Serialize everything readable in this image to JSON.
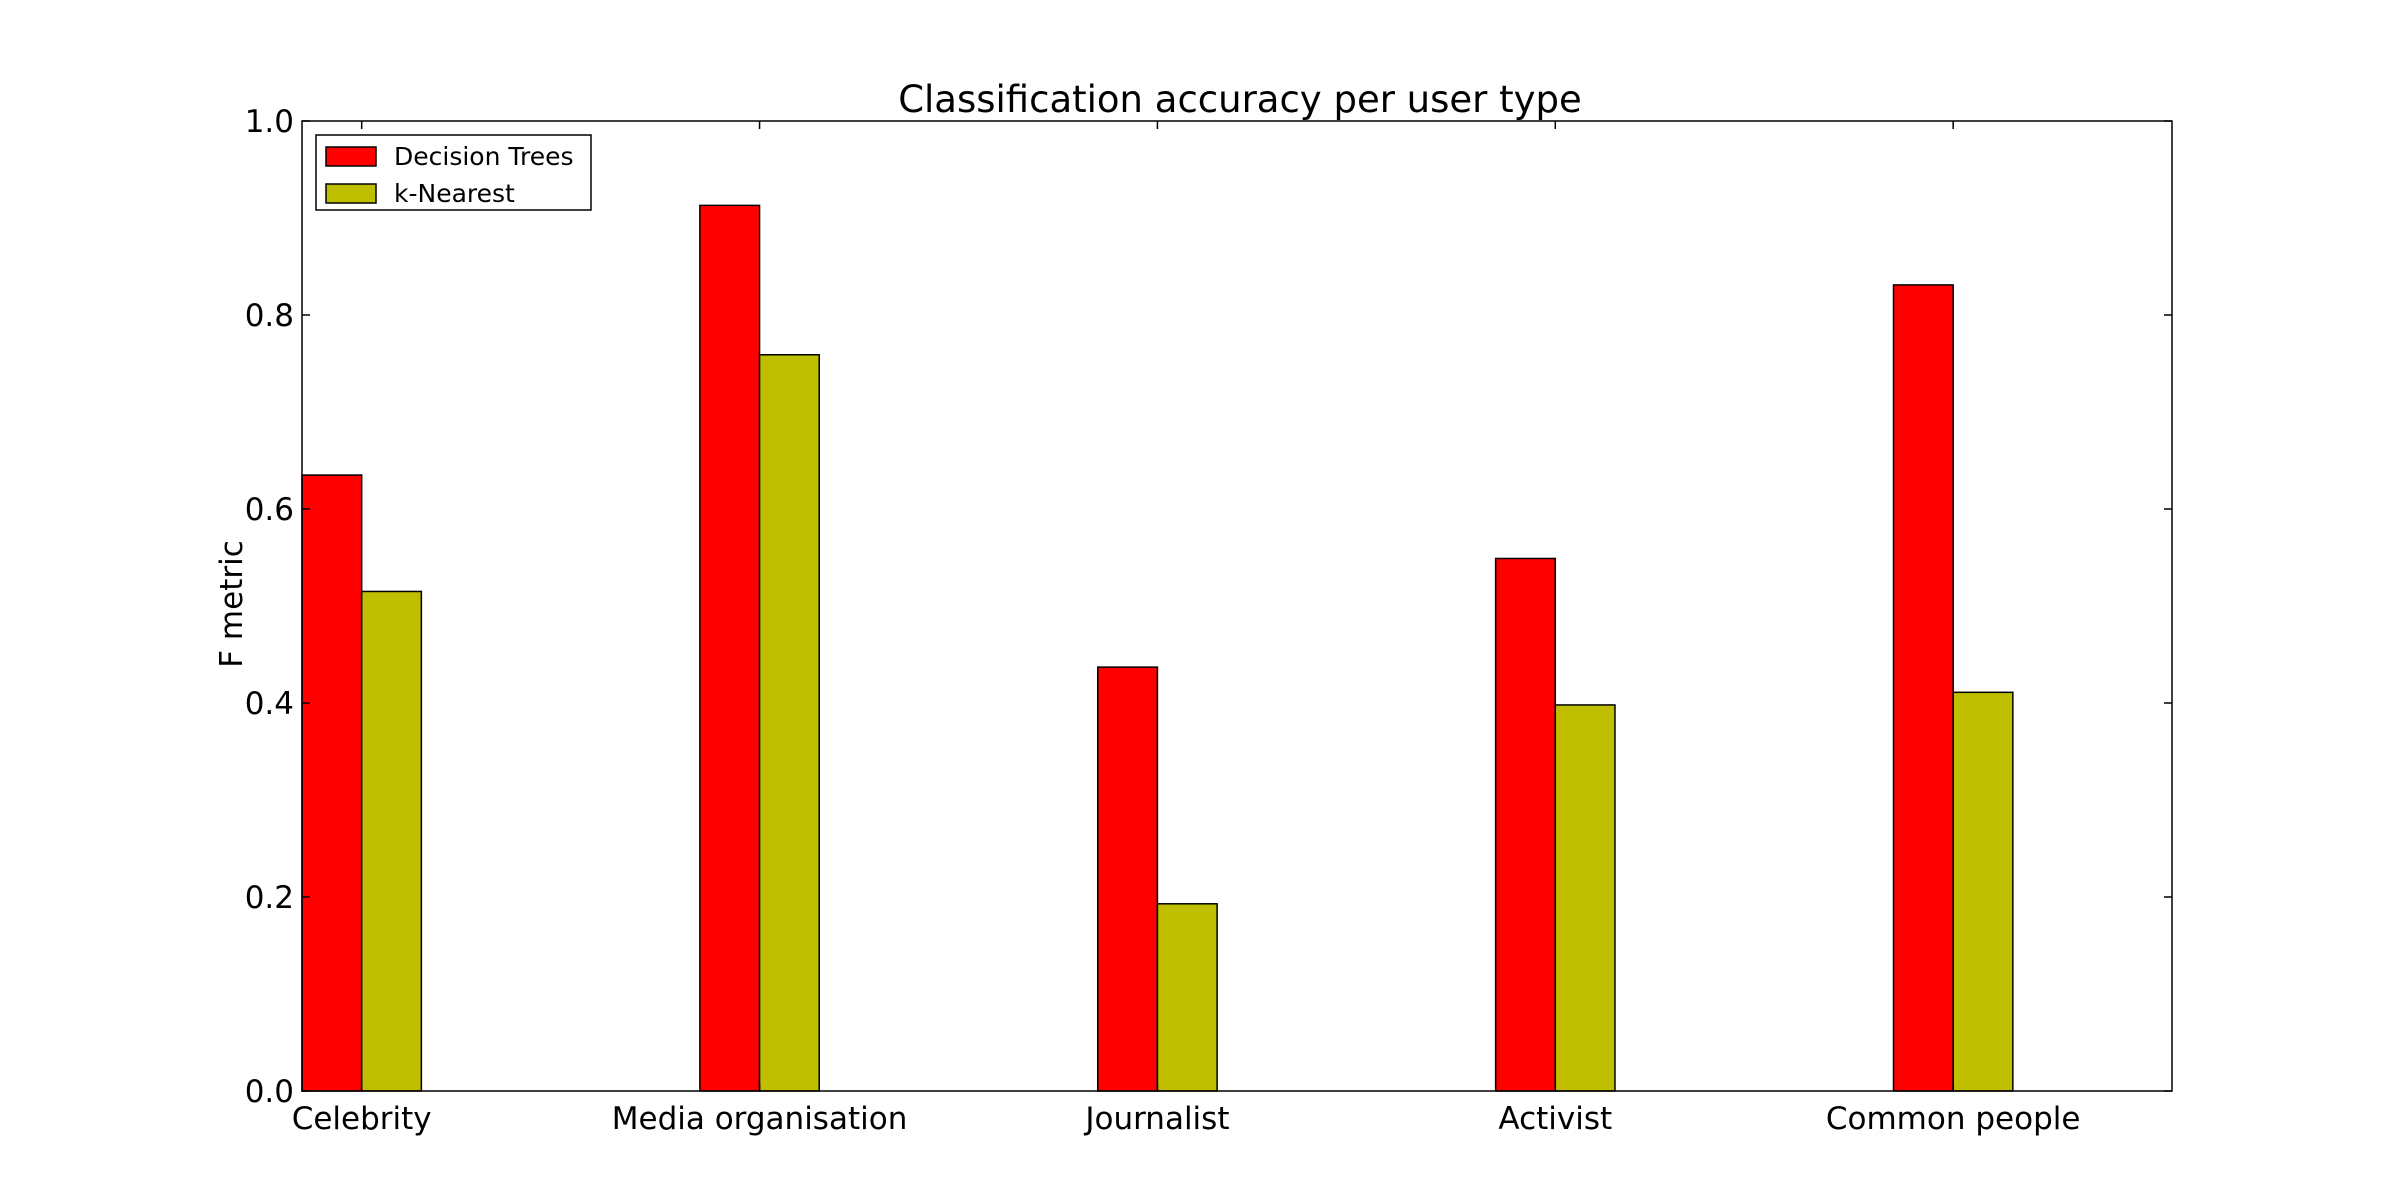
{
  "chart_data": {
    "type": "bar",
    "title": "Classification accuracy per user type",
    "xlabel": "",
    "ylabel": "F metric",
    "categories": [
      "Celebrity",
      "Media organisation",
      "Journalist",
      "Activist",
      "Common people"
    ],
    "series": [
      {
        "name": "Decision Trees",
        "color": "#ff0000",
        "values": [
          0.635,
          0.913,
          0.437,
          0.549,
          0.831
        ]
      },
      {
        "name": "k-Nearest",
        "color": "#bfbf00",
        "values": [
          0.515,
          0.759,
          0.193,
          0.398,
          0.411
        ]
      }
    ],
    "ylim": [
      0.0,
      1.0
    ],
    "yticks": [
      "0.0",
      "0.2",
      "0.4",
      "0.6",
      "0.8",
      "1.0"
    ],
    "grid": false,
    "legend_position": "top-left"
  }
}
